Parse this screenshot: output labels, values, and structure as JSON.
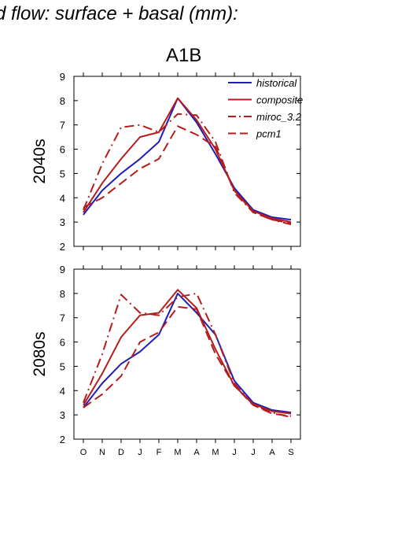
{
  "page": {
    "title": "d flow: surface + basal (mm):",
    "panel_heading": "A1B"
  },
  "chart_data": [
    {
      "type": "line",
      "row_label": "2040s",
      "categories": [
        "O",
        "N",
        "D",
        "J",
        "F",
        "M",
        "A",
        "M",
        "J",
        "J",
        "A",
        "S"
      ],
      "ylim": [
        2,
        9
      ],
      "yticks": [
        2,
        3,
        4,
        5,
        6,
        7,
        8,
        9
      ],
      "grid": false,
      "legend_position": "top-right",
      "series": [
        {
          "name": "historical",
          "color": "#1f1fb8",
          "dash": "solid",
          "values": [
            3.3,
            4.3,
            5.0,
            5.6,
            6.3,
            8.1,
            7.1,
            5.8,
            4.4,
            3.5,
            3.2,
            3.1
          ]
        },
        {
          "name": "composite",
          "color": "#b51c1c",
          "dash": "solid",
          "values": [
            3.4,
            4.6,
            5.6,
            6.5,
            6.7,
            8.1,
            7.2,
            6.0,
            4.3,
            3.45,
            3.15,
            3.0
          ]
        },
        {
          "name": "miroc_3.2",
          "color": "#b51c1c",
          "dash": "dashdot",
          "values": [
            3.5,
            5.4,
            6.9,
            7.0,
            6.7,
            7.45,
            7.4,
            6.3,
            4.2,
            3.4,
            3.1,
            2.9
          ]
        },
        {
          "name": "pcm1",
          "color": "#b51c1c",
          "dash": "dashed",
          "values": [
            3.6,
            4.0,
            4.6,
            5.2,
            5.6,
            6.95,
            6.6,
            6.1,
            4.3,
            3.4,
            3.1,
            2.95
          ]
        }
      ]
    },
    {
      "type": "line",
      "row_label": "2080s",
      "categories": [
        "O",
        "N",
        "D",
        "J",
        "F",
        "M",
        "A",
        "M",
        "J",
        "J",
        "A",
        "S"
      ],
      "ylim": [
        2,
        9
      ],
      "yticks": [
        2,
        3,
        4,
        5,
        6,
        7,
        8,
        9
      ],
      "grid": false,
      "series": [
        {
          "name": "historical",
          "color": "#1f1fb8",
          "dash": "solid",
          "values": [
            3.3,
            4.3,
            5.1,
            5.6,
            6.3,
            8.0,
            7.2,
            6.3,
            4.4,
            3.5,
            3.2,
            3.1
          ]
        },
        {
          "name": "composite",
          "color": "#b51c1c",
          "dash": "solid",
          "values": [
            3.4,
            4.7,
            6.2,
            7.1,
            7.2,
            8.15,
            7.4,
            5.7,
            4.2,
            3.45,
            3.15,
            3.05
          ]
        },
        {
          "name": "miroc_3.2",
          "color": "#b51c1c",
          "dash": "dashdot",
          "values": [
            3.5,
            5.5,
            7.95,
            7.2,
            7.1,
            7.85,
            8.0,
            6.3,
            4.3,
            3.4,
            3.1,
            2.9
          ]
        },
        {
          "name": "pcm1",
          "color": "#b51c1c",
          "dash": "dashed",
          "values": [
            3.3,
            3.85,
            4.6,
            6.0,
            6.4,
            7.45,
            7.35,
            5.5,
            4.2,
            3.4,
            3.05,
            2.95
          ]
        }
      ]
    }
  ]
}
